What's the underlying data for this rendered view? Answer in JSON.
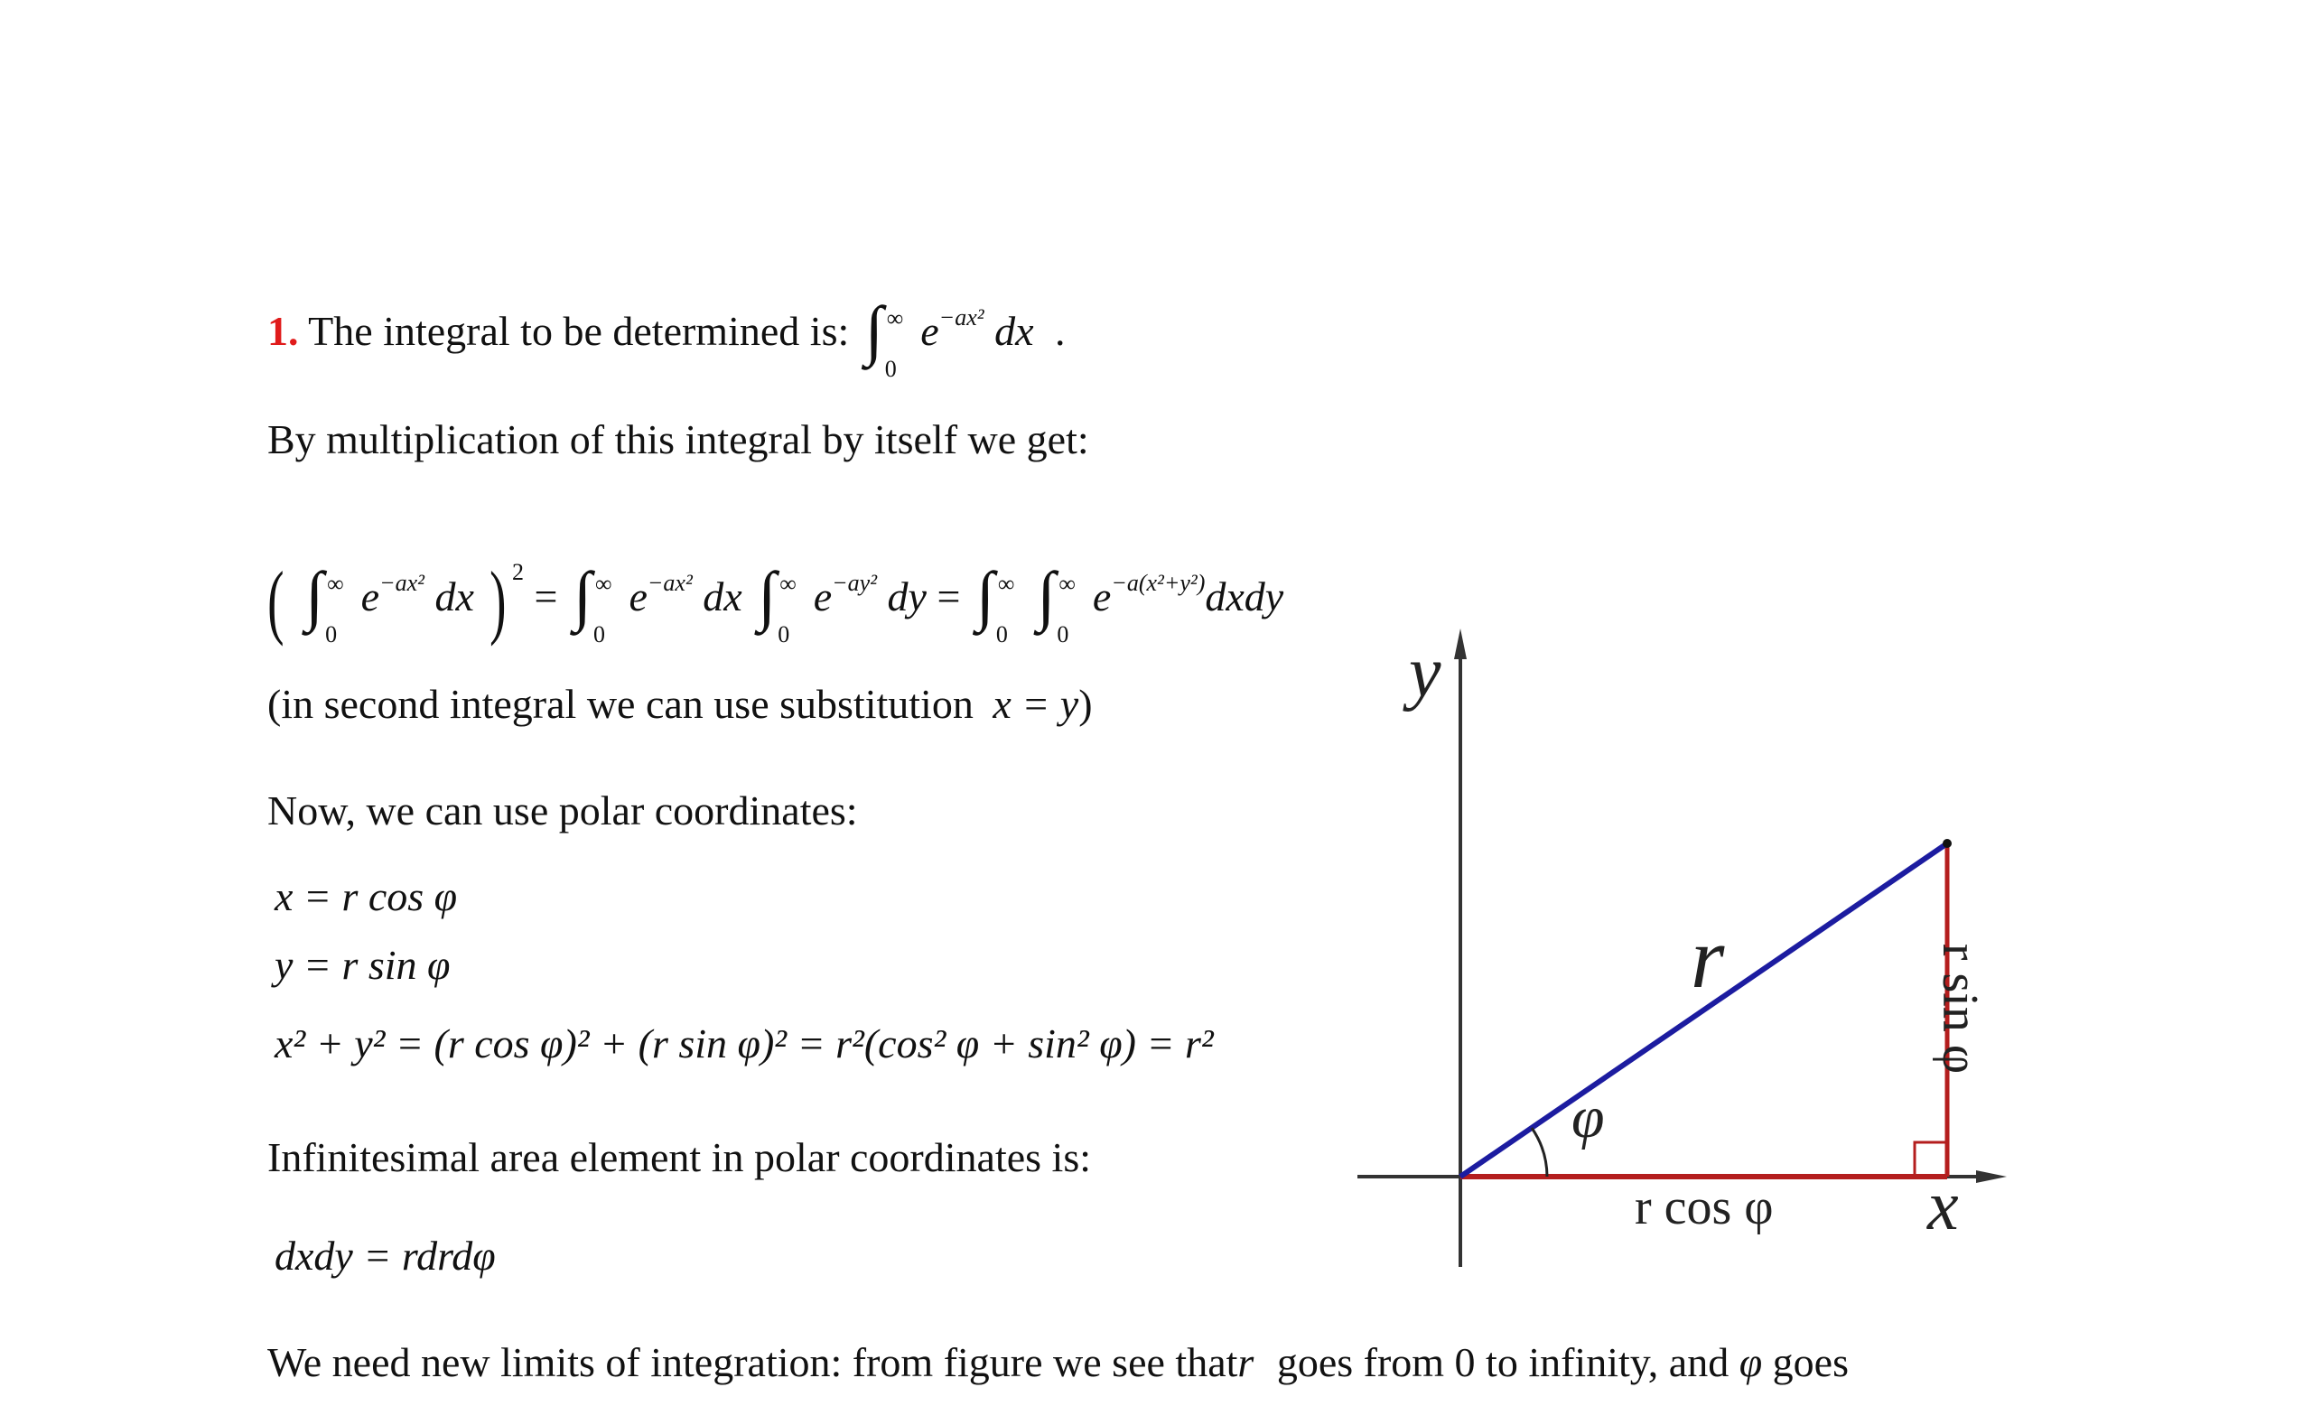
{
  "line1": {
    "number": "1.",
    "text": "The integral to be determined is:",
    "int_upper": "∞",
    "int_lower": "0",
    "base": "e",
    "exponent": "−ax²",
    "differential": "dx",
    "period": "."
  },
  "line2": {
    "text": "By multiplication of this integral by itself we get:"
  },
  "equation1": {
    "int_upper": "∞",
    "int_lower": "0",
    "base": "e",
    "exp_ax": "−ax²",
    "exp_ay": "−ay²",
    "exp_both": "−a(x²+y²)",
    "dx": "dx",
    "dy": "dy",
    "dxdy": "dxdy",
    "square": "2",
    "equals": "=",
    "open_paren": "(",
    "close_paren": ")"
  },
  "line3": {
    "text": "(in second integral we can use substitution",
    "math": "x = y",
    "close": ")"
  },
  "line4": {
    "text": "Now, we can use polar coordinates:"
  },
  "polar": {
    "x_eq": "x = r cos φ",
    "y_eq": "y = r sin φ",
    "sum_lhs": "x² + y² = (r cos φ)² + (r sin φ)² = r²(cos² φ + sin² φ) = r²"
  },
  "line5": {
    "text": "Infinitesimal area element in polar coordinates is:"
  },
  "area_eq": "dxdy = rdrdφ",
  "line6": {
    "part1": "We need new limits of integration: from figure we see that",
    "r": "r",
    "part2": "goes from 0 to infinity, and",
    "phi": "φ",
    "part3": "goes"
  },
  "figure": {
    "y_label": "y",
    "x_label": "x",
    "r_label": "r",
    "phi_label": "φ",
    "cos_label": "r cos φ",
    "sin_label": "r sin φ",
    "colors": {
      "radius": "#1c1ca0",
      "legs": "#b41e1e",
      "axes": "#333333"
    }
  }
}
